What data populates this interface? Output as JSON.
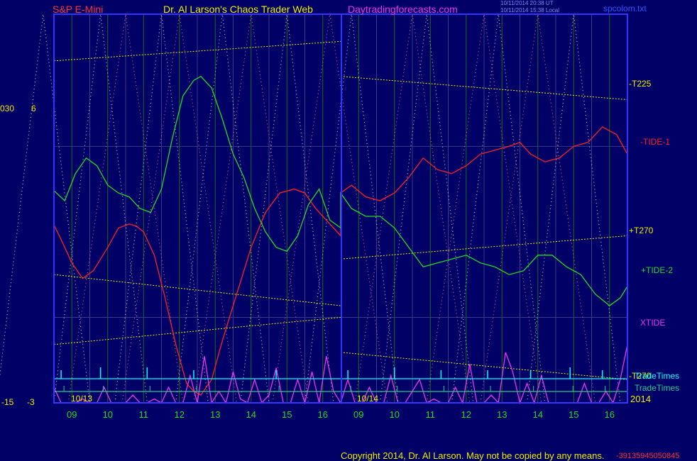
{
  "header": {
    "symbol": "S&P E-Mini",
    "site": "Dr. Al Larson's Chaos Trader Web",
    "url": "Daytradingforecasts.com",
    "timestamp1": "10/11/2014 20:38 UT",
    "timestamp2": "10/11/2014 15:38 Local",
    "file": "spcolom.txt"
  },
  "footer": {
    "copyright": "Copyright 2014, Dr. Al Larson. May not be copied by any means.",
    "serial": "-39135945050845"
  },
  "colors": {
    "background": "#000066",
    "frame": "#3333ff",
    "hour_grid": "#006600",
    "gold_lines": "#eeee00",
    "tide1": "#ff2020",
    "tide2": "#22dd22",
    "xtide": "#ee33ee",
    "tradetimes": "#00ffff",
    "tradetimes2": "#22cc88",
    "pink_dots": "#ff6699",
    "white_dots": "#dddddd",
    "hour_labels": "#22dd22"
  },
  "chart_data": {
    "type": "line",
    "left_axis_labels": [
      "030",
      "6",
      "-15",
      "-3"
    ],
    "date_labels": [
      "10/13",
      "10/14"
    ],
    "year_label": "2014",
    "x_hour_labels": [
      "09",
      "10",
      "11",
      "12",
      "13",
      "14",
      "15",
      "16",
      "09",
      "10",
      "11",
      "12",
      "13",
      "14",
      "15",
      "16"
    ],
    "x_range": [
      8.5,
      24.5
    ],
    "y_range": [
      0,
      100
    ],
    "day_boundary_x": 16.5,
    "series": [
      {
        "name": "-TIDE-1",
        "color": "#ff2020",
        "x": [
          8.5,
          8.7,
          9.0,
          9.3,
          9.6,
          10.0,
          10.3,
          10.6,
          10.8,
          11.0,
          11.3,
          11.6,
          11.9,
          12.2,
          12.4,
          12.6,
          12.9,
          13.2,
          13.6,
          14.0,
          14.4,
          14.8,
          15.2,
          15.5,
          15.8,
          16.0,
          16.3,
          16.5,
          16.5,
          16.8,
          17.2,
          17.6,
          18.0,
          18.4,
          18.8,
          19.2,
          19.6,
          20.0,
          20.4,
          20.8,
          21.2,
          21.5,
          21.8,
          22.2,
          22.6,
          23.0,
          23.4,
          23.8,
          24.2,
          24.5
        ],
        "y": [
          45.8,
          42,
          36,
          32,
          34,
          40,
          45,
          46,
          45.5,
          44,
          38,
          27,
          15,
          5,
          3,
          2,
          6,
          16,
          28,
          40,
          49,
          54,
          55,
          54,
          50,
          48,
          45,
          43,
          54,
          56,
          53,
          52,
          54,
          58,
          63,
          60,
          59,
          61,
          64,
          65,
          66,
          67,
          64,
          62,
          63,
          66,
          67,
          71,
          69,
          64
        ]
      },
      {
        "name": "+TIDE-2",
        "color": "#22dd22",
        "x": [
          8.5,
          8.8,
          9.1,
          9.4,
          9.7,
          10.0,
          10.3,
          10.6,
          10.9,
          11.2,
          11.5,
          11.8,
          12.1,
          12.4,
          12.6,
          12.9,
          13.2,
          13.5,
          13.8,
          14.1,
          14.4,
          14.7,
          15.0,
          15.3,
          15.6,
          15.9,
          16.2,
          16.5,
          16.5,
          16.8,
          17.2,
          17.6,
          18.0,
          18.4,
          18.8,
          19.2,
          19.6,
          20.0,
          20.4,
          20.8,
          21.2,
          21.6,
          22.0,
          22.4,
          22.8,
          23.2,
          23.6,
          24.0,
          24.3,
          24.5
        ],
        "y": [
          54.6,
          52,
          59,
          63,
          61,
          56,
          54,
          53,
          50,
          49,
          55,
          68,
          79,
          83,
          84,
          81,
          73,
          64,
          58,
          50,
          44,
          40,
          39,
          43,
          51,
          55,
          47,
          45,
          54,
          50,
          48,
          48,
          45,
          40,
          35,
          36,
          37,
          38,
          36,
          35,
          33,
          34,
          38,
          38,
          35,
          33,
          28,
          25,
          27,
          30
        ]
      },
      {
        "name": "XTIDE",
        "color": "#ee33ee",
        "x": [
          8.5,
          8.7,
          8.9,
          9.1,
          9.3,
          9.5,
          9.7,
          9.9,
          10.1,
          10.3,
          10.5,
          10.7,
          10.9,
          11.1,
          11.3,
          11.5,
          11.7,
          11.9,
          12.1,
          12.3,
          12.5,
          12.7,
          12.9,
          13.1,
          13.3,
          13.5,
          13.7,
          13.9,
          14.1,
          14.3,
          14.5,
          14.7,
          14.9,
          15.1,
          15.3,
          15.5,
          15.7,
          15.9,
          16.1,
          16.3,
          16.5,
          16.7,
          16.9,
          17.1,
          17.3,
          17.5,
          17.7,
          17.9,
          18.1,
          18.3,
          18.5,
          18.7,
          18.9,
          19.1,
          19.3,
          19.5,
          19.7,
          19.9,
          20.1,
          20.3,
          20.5,
          20.7,
          20.9,
          21.1,
          21.3,
          21.5,
          21.7,
          21.9,
          22.1,
          22.3,
          22.5,
          22.7,
          22.9,
          23.1,
          23.3,
          23.5,
          23.7,
          23.9,
          24.1,
          24.3,
          24.5
        ],
        "y": [
          4,
          -2,
          0,
          -3,
          1,
          -1,
          -4,
          4,
          -3,
          -1,
          -4,
          2,
          -2,
          -4,
          1,
          -3,
          4,
          -3,
          -1,
          7,
          -2,
          12,
          -1,
          3,
          -4,
          8,
          1,
          -5,
          6,
          -3,
          2,
          9,
          -2,
          -5,
          6,
          -1,
          8,
          -3,
          12,
          3,
          -4,
          6,
          -1,
          -2,
          4,
          -3,
          -5,
          7,
          -2,
          -5,
          3,
          6,
          -4,
          1,
          -2,
          -5,
          4,
          -3,
          10,
          -1,
          -4,
          2,
          -5,
          13,
          8,
          -4,
          5,
          -3,
          7,
          -2,
          -6,
          -3,
          -1,
          -4,
          5,
          -3,
          -5,
          3,
          -4,
          6,
          15
        ]
      }
    ],
    "trend_lines": [
      {
        "label": "T225",
        "color": "#eeee00",
        "segments": [
          [
            8.5,
            88,
            16.5,
            93
          ],
          [
            16.5,
            84,
            24.5,
            78
          ]
        ]
      },
      {
        "label": "T270",
        "color": "#eeee00",
        "segments": [
          [
            8.5,
            33,
            16.5,
            25
          ],
          [
            16.5,
            37,
            24.5,
            43
          ]
        ]
      },
      {
        "label": "T270-lower",
        "color": "#eeee00",
        "segments": [
          [
            8.5,
            15,
            16.5,
            22
          ],
          [
            16.5,
            13,
            24.5,
            6
          ]
        ]
      }
    ],
    "dotted_waves": [
      {
        "color": "#ff6699",
        "peaks": [
          10.5,
          12.0,
          14.0,
          16.2,
          18.5,
          20.5,
          22.0
        ],
        "period": 3.2
      },
      {
        "color": "#dddddd",
        "peaks": [
          8.2,
          9.8,
          11.5,
          13.2,
          15.0,
          16.8,
          18.9,
          20.9,
          23.0
        ],
        "period": 2.6
      }
    ],
    "trade_times": {
      "x": [
        8.7,
        9.8,
        11.1,
        12.4,
        14.7,
        16.7,
        18.0,
        19.3,
        20.6,
        21.8,
        22.9,
        23.8
      ],
      "heights": [
        3,
        4,
        4,
        3,
        3,
        3,
        4,
        3,
        3,
        3,
        4,
        3
      ]
    },
    "right_labels": [
      "-T225",
      "-TIDE-1",
      "+T270",
      "+TIDE-2",
      "XTIDE",
      "-T270",
      "TradeTimes",
      "TradeTimes"
    ]
  }
}
